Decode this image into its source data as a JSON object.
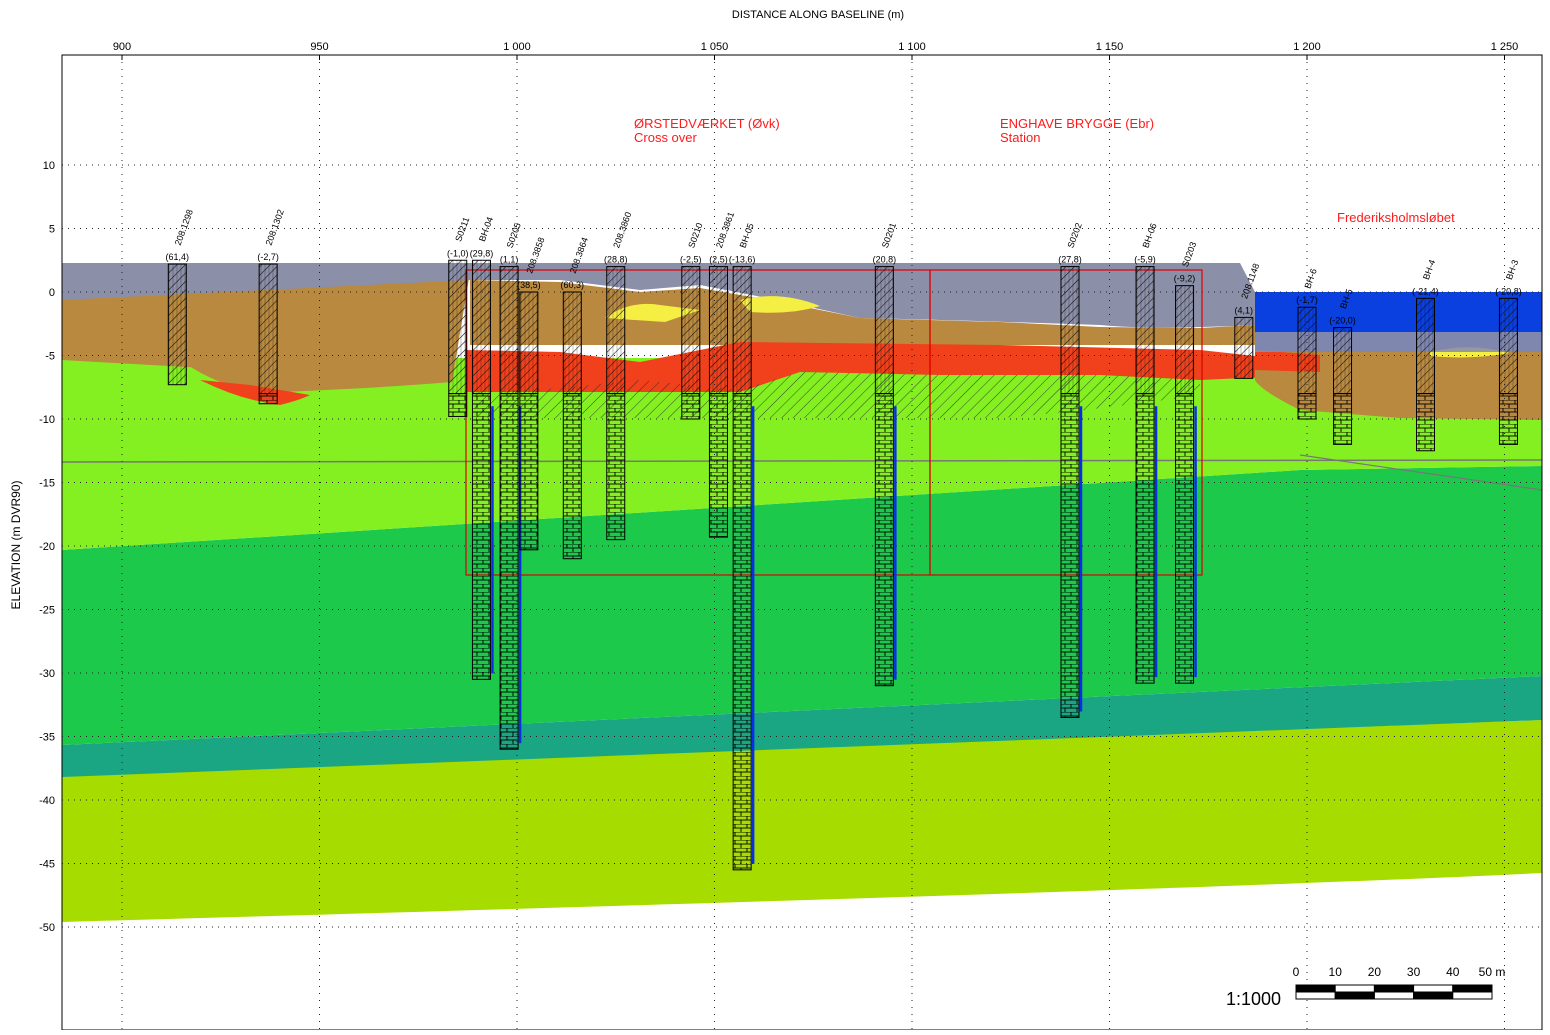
{
  "axes": {
    "x_title": "DISTANCE ALONG BASELINE (m)",
    "y_title": "ELEVATION (m DVR90)",
    "x_ticks": [
      "900",
      "950",
      "1 000",
      "1 050",
      "1 100",
      "1 150",
      "1 200",
      "1 250"
    ],
    "x_tick_values": [
      900,
      950,
      1000,
      1050,
      1100,
      1150,
      1200,
      1250
    ],
    "y_ticks": [
      "10",
      "5",
      "0",
      "-5",
      "-10",
      "-15",
      "-20",
      "-25",
      "-30",
      "-35",
      "-40",
      "-45",
      "-50"
    ],
    "y_tick_values": [
      10,
      5,
      0,
      -5,
      -10,
      -15,
      -20,
      -25,
      -30,
      -35,
      -40,
      -45,
      -50
    ]
  },
  "annotations": {
    "orsted_title": "ØRSTEDVÆRKET (Øvk)",
    "orsted_sub": "Cross over",
    "enghave_title": "ENGHAVE BRYGGE (Ebr)",
    "enghave_sub": "Station",
    "frederiksholm": "Frederiksholmsløbet"
  },
  "scale": {
    "ratio": "1:1000",
    "labels": [
      "0",
      "10",
      "20",
      "30",
      "40",
      "50 m"
    ]
  },
  "colors": {
    "fill_gray": "#8c8fa8",
    "fill_brown": "#b9893f",
    "fill_red": "#f0411c",
    "fill_yellow": "#f5ef43",
    "fill_green_light": "#84f021",
    "fill_green_dark": "#1cc94b",
    "fill_teal": "#1aa683",
    "fill_olive": "#a6dc00",
    "water": "#0a3fe0",
    "annotation_red": "#ff1a1a"
  },
  "boreholes": [
    {
      "id": "208.1298",
      "value": "(61,4)",
      "x": 914,
      "top": 2.2,
      "bottom": -7.3
    },
    {
      "id": "208.1302",
      "value": "(-2,7)",
      "x": 937,
      "top": 2.2,
      "bottom": -8.8
    },
    {
      "id": "S0211",
      "value": "(-1,0)",
      "x": 985,
      "top": 2.5,
      "bottom": -9.8
    },
    {
      "id": "BH-04",
      "value": "(29,8)",
      "x": 991,
      "top": 2.5,
      "bottom": -30.5
    },
    {
      "id": "S0205",
      "value": "(1,1)",
      "x": 998,
      "top": 2.0,
      "bottom": -36.0
    },
    {
      "id": "208.3858",
      "value": "(38,5)",
      "x": 1003,
      "top": 0.0,
      "bottom": -20.3
    },
    {
      "id": "208.3864",
      "value": "(60,3)",
      "x": 1014,
      "top": 0.0,
      "bottom": -21.0
    },
    {
      "id": "208.3860",
      "value": "(28,8)",
      "x": 1025,
      "top": 2.0,
      "bottom": -19.5
    },
    {
      "id": "S0210",
      "value": "(-2,5)",
      "x": 1044,
      "top": 2.0,
      "bottom": -10.0
    },
    {
      "id": "208.3861",
      "value": "(2,5)",
      "x": 1051,
      "top": 2.0,
      "bottom": -19.3
    },
    {
      "id": "BH-05",
      "value": "(-13,6)",
      "x": 1057,
      "top": 2.0,
      "bottom": -45.5
    },
    {
      "id": "S0201",
      "value": "(20,8)",
      "x": 1093,
      "top": 2.0,
      "bottom": -31.0
    },
    {
      "id": "S0202",
      "value": "(27,8)",
      "x": 1140,
      "top": 2.0,
      "bottom": -33.5
    },
    {
      "id": "BH-06",
      "value": "(-5,9)",
      "x": 1159,
      "top": 2.0,
      "bottom": -30.8
    },
    {
      "id": "S0203",
      "value": "(-9,2)",
      "x": 1169,
      "top": 0.5,
      "bottom": -30.8
    },
    {
      "id": "208.1148",
      "value": "(4,1)",
      "x": 1184,
      "top": -2.0,
      "bottom": -6.8
    },
    {
      "id": "BH-6",
      "value": "(-1,7)",
      "x": 1200,
      "top": -1.2,
      "bottom": -10.0
    },
    {
      "id": "BH-5",
      "value": "(-20,0)",
      "x": 1209,
      "top": -2.8,
      "bottom": -12.0
    },
    {
      "id": "BH-4",
      "value": "(-21,4)",
      "x": 1230,
      "top": -0.5,
      "bottom": -12.5
    },
    {
      "id": "BH-3",
      "value": "(-20,8)",
      "x": 1251,
      "top": -0.5,
      "bottom": -12.0
    }
  ]
}
